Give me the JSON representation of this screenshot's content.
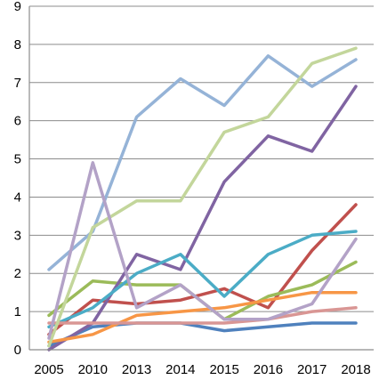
{
  "chart_data": {
    "type": "line",
    "title": "",
    "xlabel": "",
    "ylabel": "",
    "categories": [
      "2005",
      "2010",
      "2013",
      "2014",
      "2015",
      "2016",
      "2017",
      "2018"
    ],
    "ylim": [
      0,
      9
    ],
    "yticks": [
      "0",
      "1",
      "2",
      "3",
      "4",
      "5",
      "6",
      "7",
      "8",
      "9"
    ],
    "grid": true,
    "legend": "none",
    "series": [
      {
        "color": "#4f81bd",
        "values": [
          0.1,
          0.6,
          0.7,
          0.7,
          0.5,
          0.6,
          0.7,
          0.7
        ]
      },
      {
        "color": "#c0504d",
        "values": [
          0.4,
          1.3,
          1.2,
          1.3,
          1.6,
          1.1,
          2.6,
          3.8
        ]
      },
      {
        "color": "#9bbb59",
        "values": [
          0.9,
          1.8,
          1.7,
          1.7,
          0.8,
          1.4,
          1.7,
          2.3
        ]
      },
      {
        "color": "#8064a2",
        "values": [
          0.0,
          0.7,
          2.5,
          2.1,
          4.4,
          5.6,
          5.2,
          6.9
        ]
      },
      {
        "color": "#4bacc6",
        "values": [
          0.6,
          1.1,
          2.0,
          2.5,
          1.4,
          2.5,
          3.0,
          3.1
        ]
      },
      {
        "color": "#f79646",
        "values": [
          0.2,
          0.4,
          0.9,
          1.0,
          1.1,
          1.3,
          1.5,
          1.5
        ]
      },
      {
        "color": "#95b3d7",
        "values": [
          2.1,
          3.1,
          6.1,
          7.1,
          6.4,
          7.7,
          6.9,
          7.6
        ]
      },
      {
        "color": "#d99694",
        "values": [
          0.7,
          0.7,
          0.7,
          0.7,
          0.7,
          0.8,
          1.0,
          1.1
        ]
      },
      {
        "color": "#c3d69b",
        "values": [
          0.1,
          3.2,
          3.9,
          3.9,
          5.7,
          6.1,
          7.5,
          7.9
        ]
      },
      {
        "color": "#b3a2c7",
        "values": [
          0.3,
          4.9,
          1.1,
          1.7,
          0.8,
          0.8,
          1.2,
          2.9
        ]
      }
    ]
  }
}
